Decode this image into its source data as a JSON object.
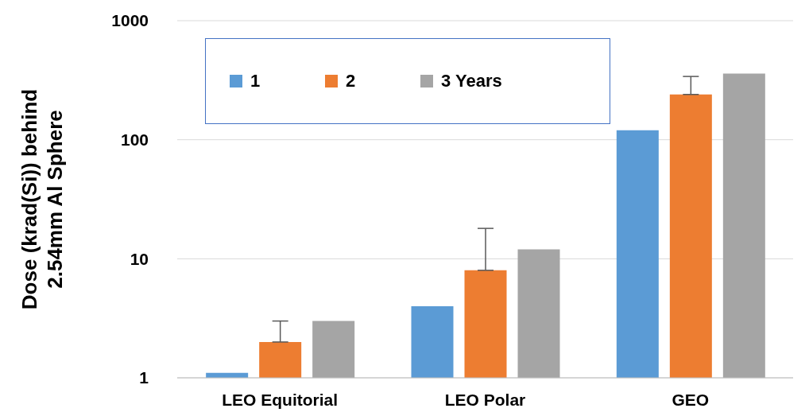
{
  "chart_data": {
    "type": "bar",
    "ylabel": "Dose (krad(Si)) behind\n2.54mm Al Sphere",
    "categories": [
      "LEO Equitorial",
      "LEO Polar",
      "GEO"
    ],
    "series": [
      {
        "name": "1",
        "color": "#5b9bd5",
        "values": [
          1.1,
          4,
          120
        ]
      },
      {
        "name": "2",
        "color": "#ed7d31",
        "values": [
          2,
          8,
          240
        ],
        "errors": [
          [
            2,
            3
          ],
          [
            8,
            18
          ],
          [
            240,
            340
          ]
        ]
      },
      {
        "name": "3 Years",
        "color": "#a5a5a5",
        "values": [
          3,
          12,
          360
        ]
      }
    ],
    "log": true,
    "ylim": [
      1,
      1000
    ],
    "yticks": [
      1,
      10,
      100,
      1000
    ],
    "grid": "y",
    "legend": "top left"
  }
}
